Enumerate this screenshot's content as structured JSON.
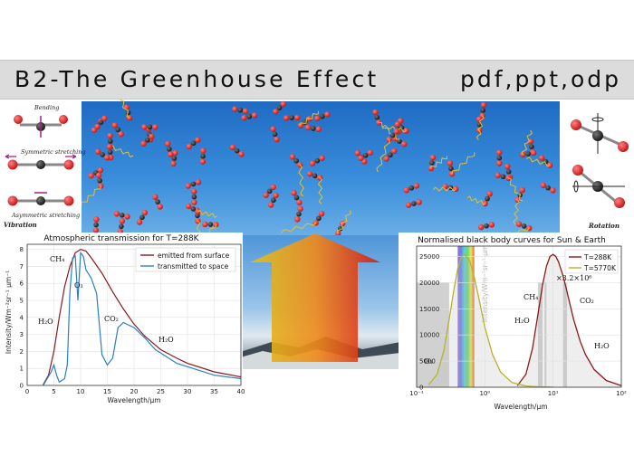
{
  "header": {
    "title": "B2-The Greenhouse Effect",
    "formats": "pdf,ppt,odp"
  },
  "vibration_panel": {
    "bending": "Bending",
    "symmetric": "Symmetric stretching",
    "asymmetric": "Asymmetric stretching",
    "caption": "Vibration"
  },
  "rotation_panel": {
    "caption": "Rotation"
  },
  "colors": {
    "oxygen": "#d42020",
    "carbon": "#1a1a1a",
    "sky": "#2f84d6",
    "emitted": "#8b1a1a",
    "transmitted": "#2a7fc0",
    "sun_curve": "#b9b32a"
  },
  "chart_data": [
    {
      "type": "line",
      "title": "Atmospheric transmission for T=288K",
      "xlabel": "Wavelength/μm",
      "ylabel": "Intensity/Wm⁻²sr⁻¹ μm⁻¹",
      "xlim": [
        0,
        40
      ],
      "ylim": [
        0,
        8.3
      ],
      "xticks": [
        "0",
        "5",
        "10",
        "15",
        "20",
        "25",
        "30",
        "35",
        "40"
      ],
      "yticks": [
        "0",
        "1",
        "2",
        "3",
        "4",
        "5",
        "6",
        "7",
        "8"
      ],
      "grid": true,
      "legend": "top-right",
      "annotations": [
        "CH₄",
        "O₃",
        "H₂O",
        "CO₂",
        "H₂O"
      ],
      "series": [
        {
          "name": "emitted from surface",
          "x": [
            3,
            4,
            5,
            6,
            7,
            8,
            9,
            10,
            11,
            12,
            14,
            16,
            18,
            20,
            22,
            25,
            28,
            30,
            35,
            40
          ],
          "y": [
            0.05,
            0.6,
            2.0,
            4.0,
            5.8,
            7.0,
            7.8,
            8.0,
            7.9,
            7.5,
            6.6,
            5.5,
            4.5,
            3.6,
            2.9,
            2.1,
            1.6,
            1.3,
            0.8,
            0.5
          ]
        },
        {
          "name": "transmitted to space",
          "x": [
            3,
            4.5,
            5,
            5.5,
            6,
            7,
            7.5,
            8,
            8.5,
            9,
            9.5,
            10,
            10.5,
            11,
            12,
            13,
            14,
            15,
            16,
            17,
            18,
            20,
            22,
            24,
            26,
            28,
            30,
            35,
            40
          ],
          "y": [
            0,
            0.8,
            1.2,
            0.6,
            0.2,
            0.4,
            1.2,
            5.5,
            7.5,
            7.6,
            5.0,
            7.8,
            7.6,
            6.8,
            6.3,
            5.4,
            1.8,
            1.2,
            1.6,
            3.4,
            3.7,
            3.4,
            2.8,
            2.1,
            1.7,
            1.3,
            1.1,
            0.6,
            0.4
          ]
        }
      ]
    },
    {
      "type": "line",
      "title": "Normalised black body curves for Sun & Earth",
      "xlabel": "Wavelength/μm",
      "ylabel": "Intensity/Wm⁻²sr⁻¹ μm⁻¹",
      "x_scale": "log",
      "xlim": [
        0.1,
        100
      ],
      "ylim": [
        0,
        27000
      ],
      "xticks": [
        "10⁻¹",
        "10⁰",
        "10¹",
        "10²"
      ],
      "yticks": [
        "0",
        "5000",
        "10000",
        "15000",
        "20000",
        "25000"
      ],
      "grid": true,
      "legend": "top-right",
      "annotations": [
        "×3.2×10⁶",
        "CH₄",
        "CO₂",
        "H₂O",
        "H₂O",
        "O₃"
      ],
      "series": [
        {
          "name": "T=288K",
          "x": [
            3,
            4,
            5,
            6,
            7,
            8,
            9,
            10,
            11,
            12,
            14,
            16,
            20,
            25,
            30,
            40,
            60,
            100
          ],
          "y": [
            300,
            2500,
            7500,
            14000,
            19500,
            23200,
            25000,
            25400,
            25000,
            24000,
            21300,
            18300,
            13000,
            8800,
            6200,
            3400,
            1300,
            300
          ]
        },
        {
          "name": "T=5770K",
          "x": [
            0.15,
            0.2,
            0.25,
            0.3,
            0.35,
            0.4,
            0.45,
            0.5,
            0.6,
            0.7,
            0.8,
            1.0,
            1.3,
            1.7,
            2.5,
            4,
            6,
            10
          ],
          "y": [
            500,
            2500,
            7000,
            13000,
            18500,
            22700,
            24900,
            25400,
            24200,
            21000,
            17600,
            11500,
            6200,
            2900,
            900,
            250,
            80,
            20
          ]
        }
      ]
    }
  ]
}
